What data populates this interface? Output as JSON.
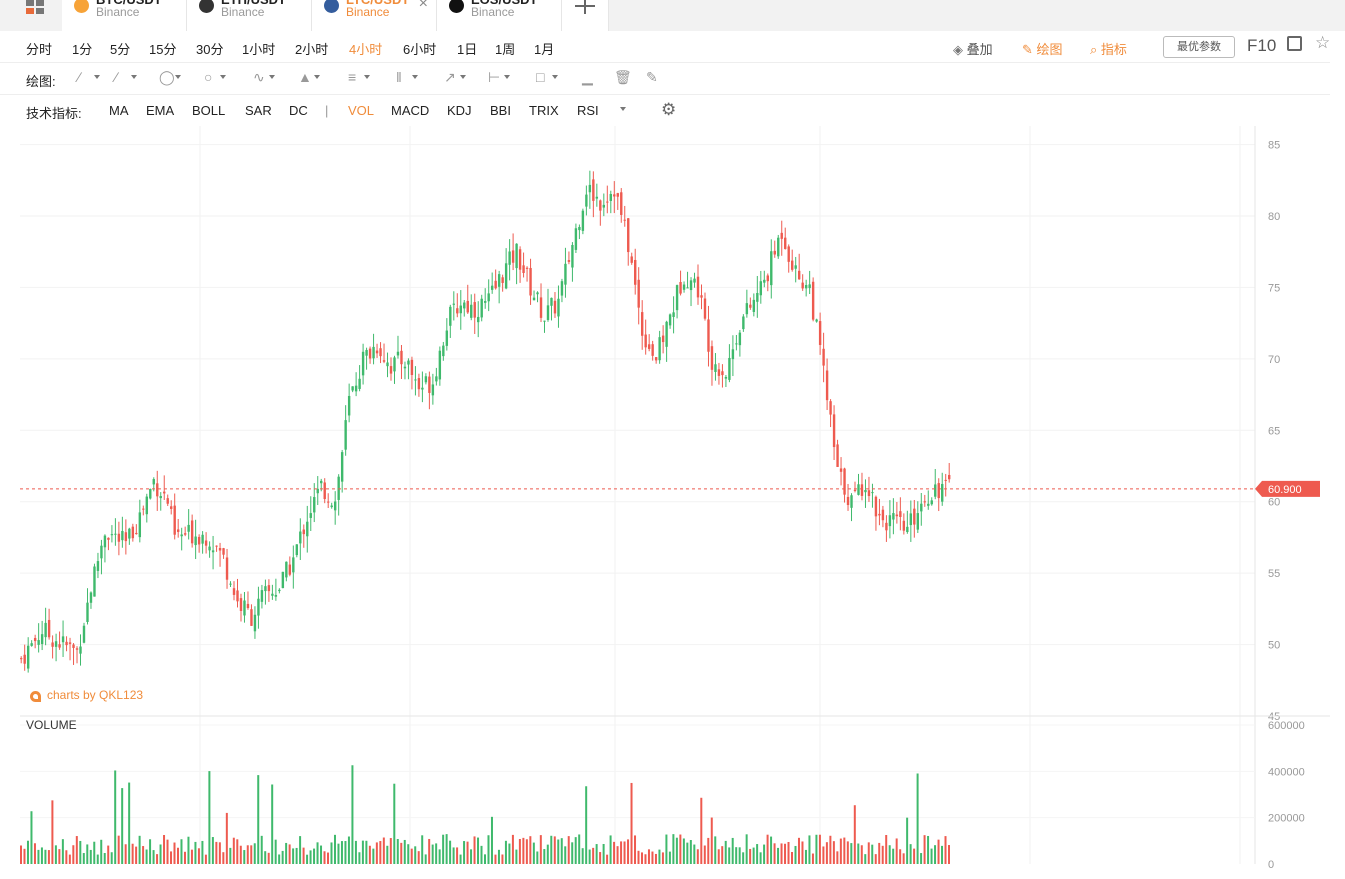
{
  "tabs": [
    {
      "symbol": "BTC/USDT",
      "exchange": "Binance",
      "coin_color": "#f7a338",
      "active": false
    },
    {
      "symbol": "ETH/USDT",
      "exchange": "Binance",
      "coin_color": "#333333",
      "active": false
    },
    {
      "symbol": "LTC/USDT",
      "exchange": "Binance",
      "coin_color": "#345d9d",
      "active": true
    },
    {
      "symbol": "EOS/USDT",
      "exchange": "Binance",
      "coin_color": "#111111",
      "active": false
    }
  ],
  "periods": [
    "分时",
    "1分",
    "5分",
    "15分",
    "30分",
    "1小时",
    "2小时",
    "4小时",
    "6小时",
    "1日",
    "1周",
    "1月"
  ],
  "active_period": "4小时",
  "right_tools": {
    "overlay": "叠加",
    "draw": "绘图",
    "indicator": "指标",
    "best_params": "最优参数",
    "f10": "F10"
  },
  "draw_label": "绘图:",
  "draw_tools": [
    "line-tool-icon",
    "ray-tool-icon",
    "channel-tool-icon",
    "ellipse-tool-icon",
    "zigzag-tool-icon",
    "pattern-tool-icon",
    "fibonacci-tool-icon",
    "grid-tool-icon",
    "arrow-tool-icon",
    "measure-tool-icon",
    "comment-tool-icon",
    "bar-tool-icon",
    "trash-icon",
    "pen-icon"
  ],
  "indicator_label": "技术指标:",
  "indicators": [
    "MA",
    "EMA",
    "BOLL",
    "SAR",
    "DC",
    "|",
    "VOL",
    "MACD",
    "KDJ",
    "BBI",
    "TRIX",
    "RSI"
  ],
  "active_indicator": "VOL",
  "watermark": "charts by QKL123",
  "volume_label": "VOLUME",
  "colors": {
    "up": "#3fb96c",
    "down": "#ee5a4f",
    "accent": "#f08c3b",
    "price_line": "#ee5a4f"
  },
  "chart_data": {
    "type": "candlestick",
    "last_price": "60.900",
    "price_axis": {
      "ticks": [
        45,
        50,
        55,
        60,
        65,
        70,
        75,
        80,
        85
      ],
      "range": [
        45,
        86.3
      ]
    },
    "volume_axis": {
      "ticks": [
        0,
        200000,
        400000,
        600000
      ],
      "range": [
        0,
        600000
      ]
    },
    "close_path": [
      [
        0,
        49
      ],
      [
        6,
        51
      ],
      [
        12,
        50
      ],
      [
        16,
        49.5
      ],
      [
        20,
        54
      ],
      [
        24,
        58
      ],
      [
        30,
        57
      ],
      [
        34,
        59
      ],
      [
        38,
        61.5
      ],
      [
        42,
        60
      ],
      [
        44,
        57.5
      ],
      [
        50,
        57.8
      ],
      [
        54,
        57.5
      ],
      [
        58,
        56
      ],
      [
        62,
        53
      ],
      [
        66,
        52
      ],
      [
        70,
        53.5
      ],
      [
        74,
        54
      ],
      [
        78,
        56
      ],
      [
        82,
        59
      ],
      [
        86,
        61
      ],
      [
        90,
        60
      ],
      [
        94,
        67
      ],
      [
        98,
        70
      ],
      [
        102,
        71
      ],
      [
        106,
        69.5
      ],
      [
        110,
        70
      ],
      [
        114,
        68
      ],
      [
        118,
        68.5
      ],
      [
        122,
        72.5
      ],
      [
        126,
        74
      ],
      [
        130,
        73.5
      ],
      [
        134,
        74
      ],
      [
        138,
        76
      ],
      [
        142,
        77.5
      ],
      [
        146,
        75
      ],
      [
        150,
        73
      ],
      [
        154,
        74
      ],
      [
        158,
        78
      ],
      [
        162,
        82
      ],
      [
        166,
        81
      ],
      [
        170,
        82
      ],
      [
        174,
        78
      ],
      [
        178,
        72
      ],
      [
        182,
        70
      ],
      [
        186,
        73
      ],
      [
        190,
        76
      ],
      [
        194,
        75
      ],
      [
        198,
        70
      ],
      [
        202,
        69
      ],
      [
        206,
        72.5
      ],
      [
        210,
        74
      ],
      [
        214,
        76
      ],
      [
        218,
        79
      ],
      [
        222,
        76
      ],
      [
        226,
        75
      ],
      [
        230,
        69
      ],
      [
        234,
        62
      ],
      [
        238,
        60
      ],
      [
        242,
        61.5
      ],
      [
        246,
        59
      ],
      [
        250,
        58.5
      ],
      [
        254,
        58
      ],
      [
        258,
        60
      ],
      [
        262,
        61
      ],
      [
        266,
        60.9
      ]
    ]
  }
}
